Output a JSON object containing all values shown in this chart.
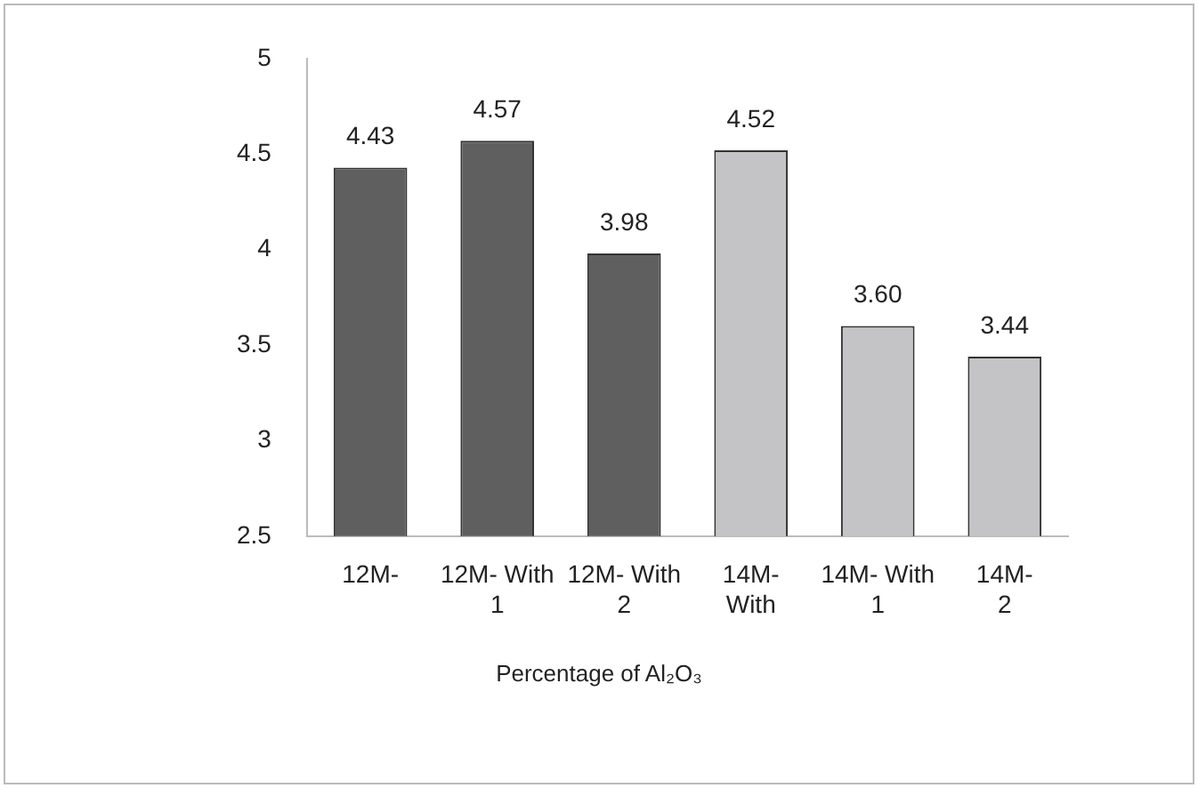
{
  "chart_data": {
    "type": "bar",
    "xlabel": "Percentage of Al₂O₃",
    "categories": [
      "12M-",
      "12M- With\n1",
      "12M- With\n2",
      "14M-\nWith",
      "14M- With\n1",
      "14M-\n2"
    ],
    "values": [
      4.43,
      4.57,
      3.98,
      4.52,
      3.6,
      3.44
    ],
    "colors": [
      "#5f5f5f",
      "#5f5f5f",
      "#5f5f5f",
      "#c4c4c6",
      "#c4c4c6",
      "#c4c4c6"
    ],
    "ylim": [
      2.5,
      5
    ],
    "yticks": [
      2.5,
      3,
      3.5,
      4,
      4.5,
      5
    ],
    "value_labels": [
      "4.43",
      "4.57",
      "3.98",
      "4.52",
      "3.60",
      "3.44"
    ],
    "grid": false,
    "legend": false
  }
}
